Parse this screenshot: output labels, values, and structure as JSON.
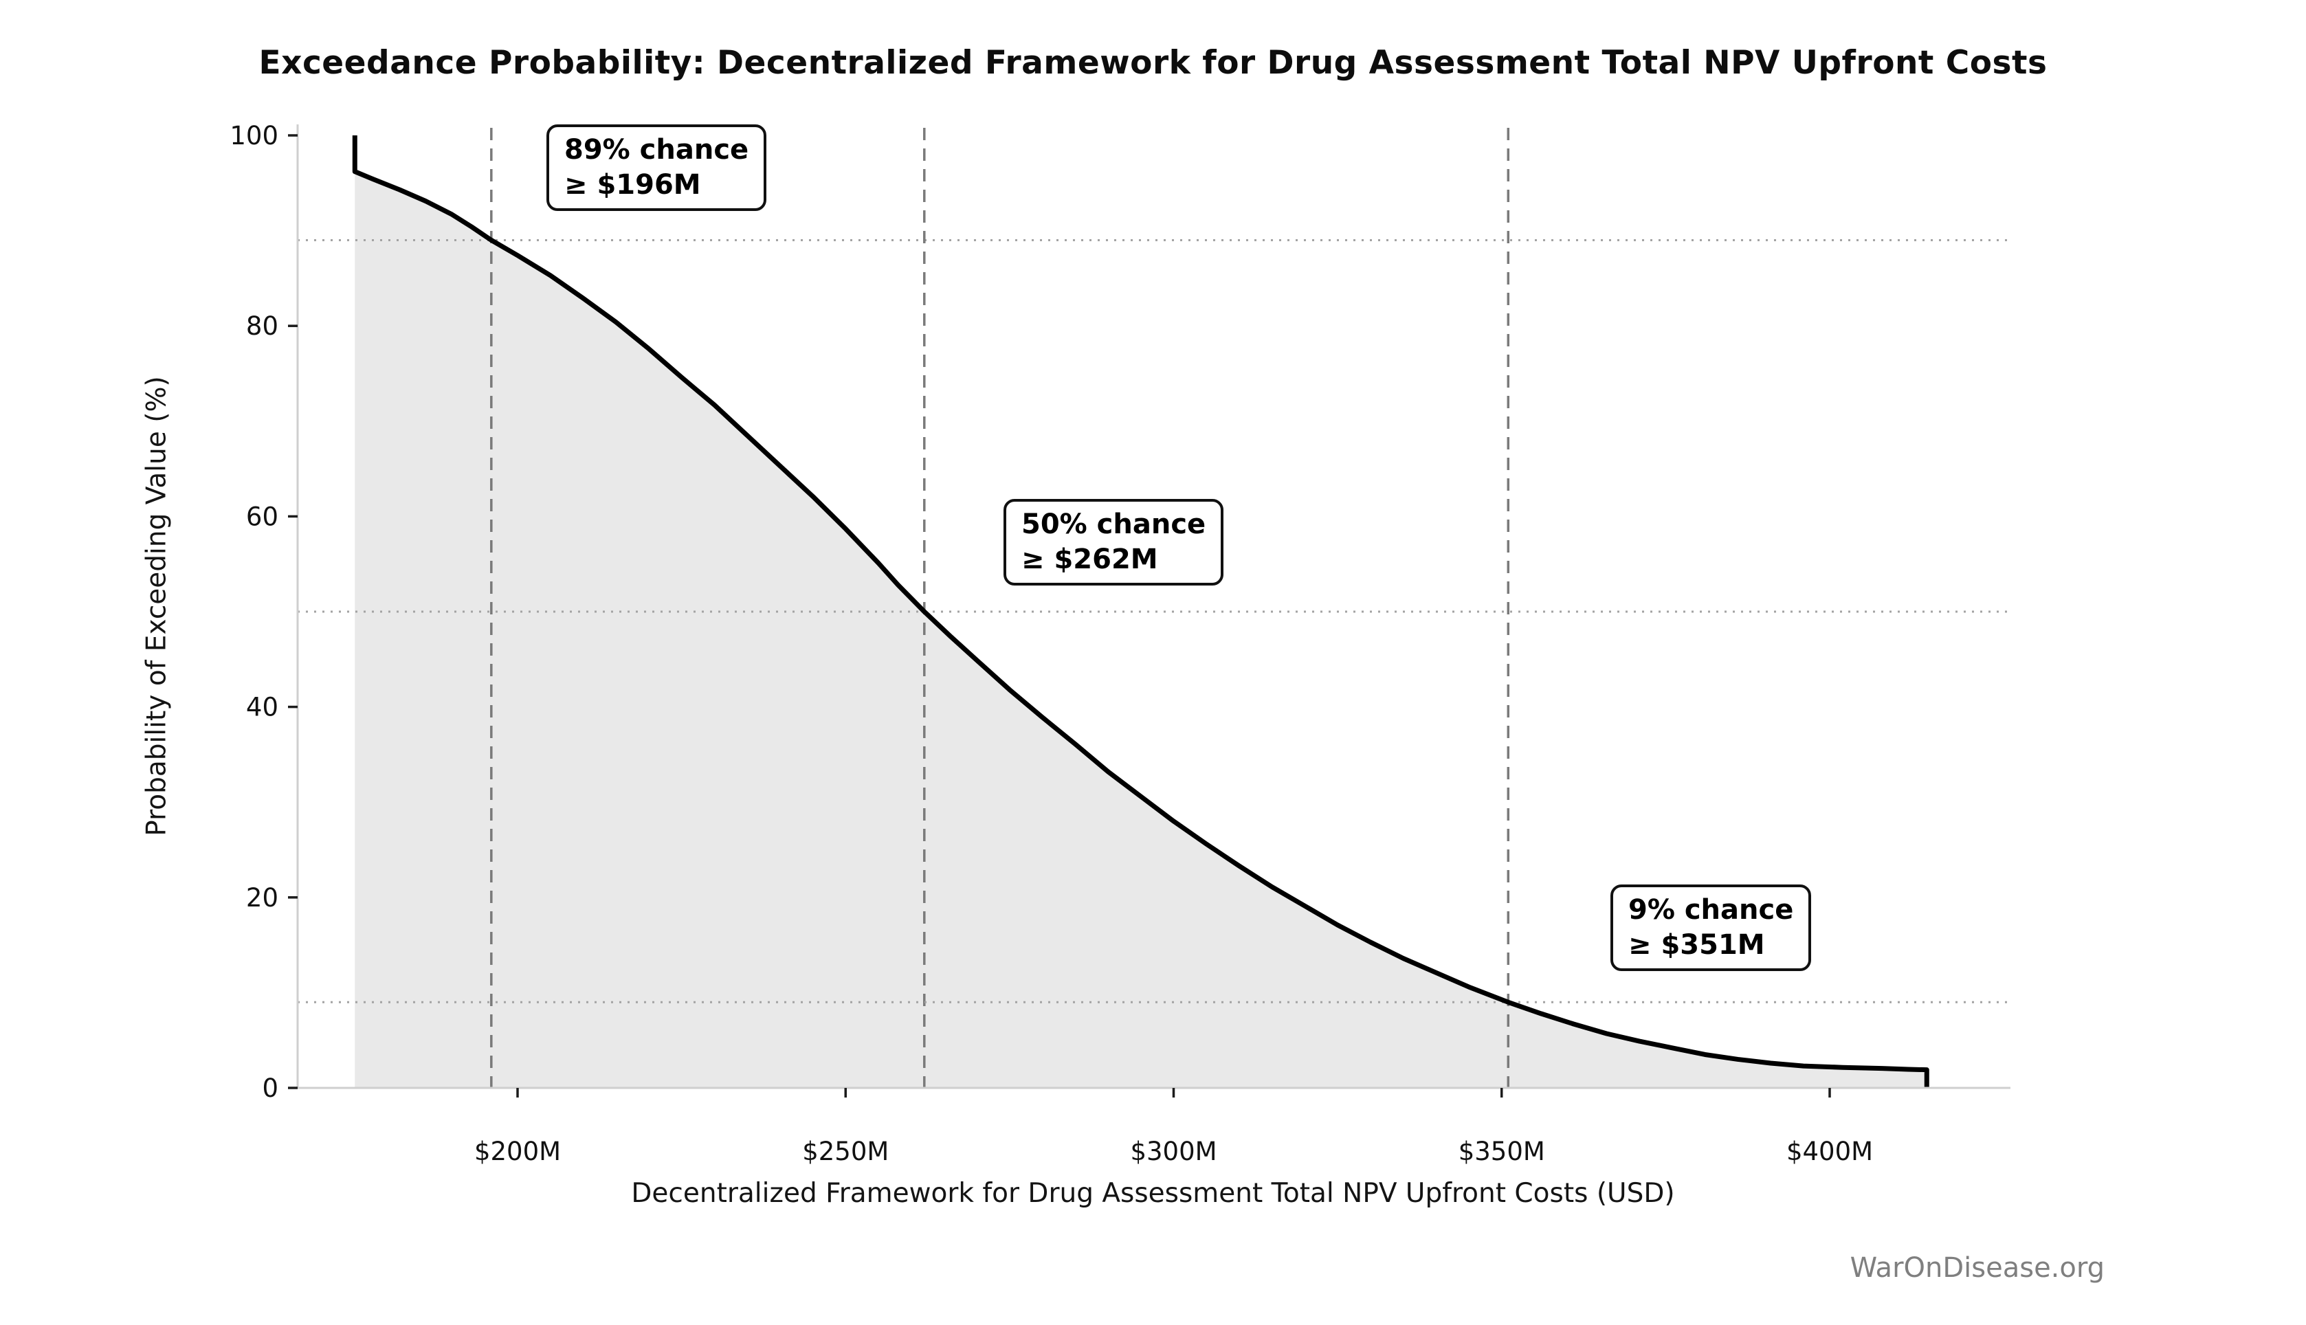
{
  "figure": {
    "title": "Exceedance Probability: Decentralized Framework for Drug Assessment Total NPV Upfront Costs",
    "watermark": "WarOnDisease.org"
  },
  "chart_data": {
    "type": "area",
    "title": "Exceedance Probability: Decentralized Framework for Drug Assessment Total NPV Upfront Costs",
    "xlabel": "Decentralized Framework for Drug Assessment Total NPV Upfront Costs (USD)",
    "ylabel": "Probability of Exceeding Value (%)",
    "x_unit": "USD millions",
    "xlim": [
      166,
      429
    ],
    "ylim": [
      0,
      101
    ],
    "grid": "off",
    "legend": "none",
    "x_ticks": [
      {
        "value": 200,
        "label": "$200M"
      },
      {
        "value": 250,
        "label": "$250M"
      },
      {
        "value": 300,
        "label": "$300M"
      },
      {
        "value": 350,
        "label": "$350M"
      },
      {
        "value": 400,
        "label": "$400M"
      }
    ],
    "y_ticks": [
      {
        "value": 0,
        "label": "0"
      },
      {
        "value": 20,
        "label": "20"
      },
      {
        "value": 40,
        "label": "40"
      },
      {
        "value": 60,
        "label": "60"
      },
      {
        "value": 80,
        "label": "80"
      },
      {
        "value": 100,
        "label": "100"
      }
    ],
    "curve": {
      "name": "exceedance-probability",
      "x_musd": [
        175.2,
        175.2,
        178,
        182,
        186,
        190,
        193,
        196,
        200,
        205,
        210,
        215,
        220,
        225,
        230,
        235,
        240,
        245,
        250,
        255,
        258,
        262,
        266,
        270,
        275,
        280,
        285,
        290,
        295,
        300,
        305,
        310,
        315,
        320,
        325,
        330,
        335,
        340,
        345,
        351,
        356,
        361,
        366,
        371,
        376,
        381,
        386,
        391,
        396,
        402,
        408,
        412,
        414.8,
        414.8
      ],
      "y_pct": [
        100,
        96.2,
        95.4,
        94.3,
        93.1,
        91.7,
        90.4,
        89,
        87.4,
        85.3,
        82.9,
        80.4,
        77.6,
        74.6,
        71.7,
        68.5,
        65.3,
        62.1,
        58.7,
        55.1,
        52.8,
        50,
        47.4,
        44.9,
        41.8,
        38.9,
        36.1,
        33.2,
        30.6,
        28,
        25.6,
        23.3,
        21.1,
        19.1,
        17.1,
        15.3,
        13.6,
        12.1,
        10.6,
        9,
        7.8,
        6.7,
        5.7,
        4.9,
        4.2,
        3.5,
        3,
        2.6,
        2.3,
        2.15,
        2.05,
        1.95,
        1.9,
        0
      ]
    },
    "reference_lines": [
      {
        "prob_pct": 89,
        "value_musd": 196,
        "label_line1": "89% chance",
        "label_line2": "≥ $196M"
      },
      {
        "prob_pct": 50,
        "value_musd": 262,
        "label_line1": "50% chance",
        "label_line2": "≥ $262M"
      },
      {
        "prob_pct": 9,
        "value_musd": 351,
        "label_line1": "9% chance",
        "label_line2": "≥ $351M"
      }
    ],
    "colors": {
      "curve": "#000000",
      "fill": "#e9e9e9",
      "dashed_line": "#7a7a7a",
      "dotted_line": "#a3a3a3",
      "spine": "#cfcfcf",
      "tick": "#1c1c1c",
      "watermark": "#7f7f7f"
    }
  }
}
